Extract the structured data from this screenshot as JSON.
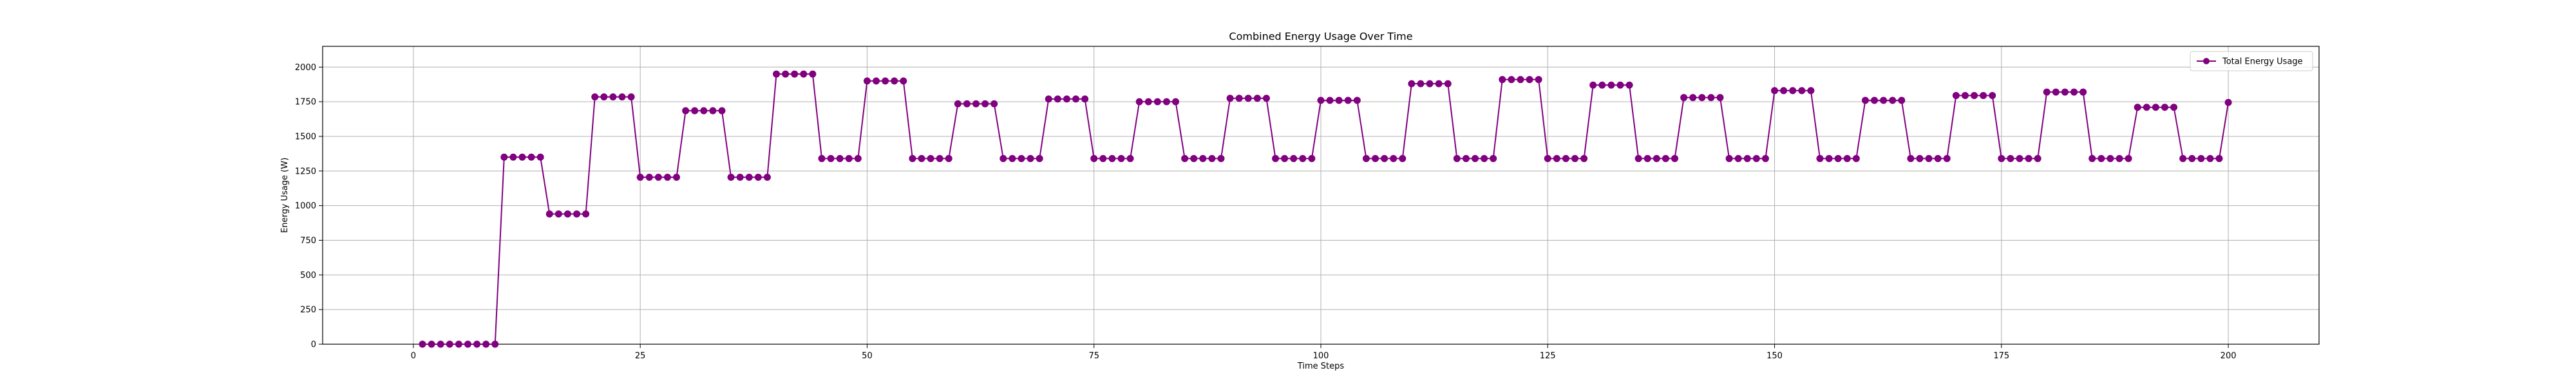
{
  "chart_data": {
    "type": "line",
    "title": "Combined Energy Usage Over Time",
    "xlabel": "Time Steps",
    "ylabel": "Energy Usage (W)",
    "xlim": [
      -10,
      210
    ],
    "ylim": [
      0,
      2150
    ],
    "xticks": [
      0,
      25,
      50,
      75,
      100,
      125,
      150,
      175,
      200
    ],
    "yticks": [
      0,
      250,
      500,
      750,
      1000,
      1250,
      1500,
      1750,
      2000
    ],
    "grid": true,
    "legend_position": "top-right",
    "series": [
      {
        "name": "Total Energy Usage",
        "color": "#800080",
        "marker": "circle",
        "x": [
          1,
          2,
          3,
          4,
          5,
          6,
          7,
          8,
          9,
          10,
          11,
          12,
          13,
          14,
          15,
          16,
          17,
          18,
          19,
          20,
          21,
          22,
          23,
          24,
          25,
          26,
          27,
          28,
          29,
          30,
          31,
          32,
          33,
          34,
          35,
          36,
          37,
          38,
          39,
          40,
          41,
          42,
          43,
          44,
          45,
          46,
          47,
          48,
          49,
          50,
          51,
          52,
          53,
          54,
          55,
          56,
          57,
          58,
          59,
          60,
          61,
          62,
          63,
          64,
          65,
          66,
          67,
          68,
          69,
          70,
          71,
          72,
          73,
          74,
          75,
          76,
          77,
          78,
          79,
          80,
          81,
          82,
          83,
          84,
          85,
          86,
          87,
          88,
          89,
          90,
          91,
          92,
          93,
          94,
          95,
          96,
          97,
          98,
          99,
          100,
          101,
          102,
          103,
          104,
          105,
          106,
          107,
          108,
          109,
          110,
          111,
          112,
          113,
          114,
          115,
          116,
          117,
          118,
          119,
          120,
          121,
          122,
          123,
          124,
          125,
          126,
          127,
          128,
          129,
          130,
          131,
          132,
          133,
          134,
          135,
          136,
          137,
          138,
          139,
          140,
          141,
          142,
          143,
          144,
          145,
          146,
          147,
          148,
          149,
          150,
          151,
          152,
          153,
          154,
          155,
          156,
          157,
          158,
          159,
          160,
          161,
          162,
          163,
          164,
          165,
          166,
          167,
          168,
          169,
          170,
          171,
          172,
          173,
          174,
          175,
          176,
          177,
          178,
          179,
          180,
          181,
          182,
          183,
          184,
          185,
          186,
          187,
          188,
          189,
          190,
          191,
          192,
          193,
          194,
          195,
          196,
          197,
          198,
          199,
          200
        ],
        "y": [
          0,
          0,
          0,
          0,
          0,
          0,
          0,
          0,
          0,
          1350,
          1350,
          1350,
          1350,
          1350,
          940,
          940,
          940,
          940,
          940,
          1785,
          1785,
          1785,
          1785,
          1785,
          1205,
          1205,
          1205,
          1205,
          1205,
          1685,
          1685,
          1685,
          1685,
          1685,
          1205,
          1205,
          1205,
          1205,
          1205,
          1950,
          1950,
          1950,
          1950,
          1950,
          1340,
          1340,
          1340,
          1340,
          1340,
          1900,
          1900,
          1900,
          1900,
          1900,
          1340,
          1340,
          1340,
          1340,
          1340,
          1735,
          1735,
          1735,
          1735,
          1735,
          1340,
          1340,
          1340,
          1340,
          1340,
          1770,
          1770,
          1770,
          1770,
          1770,
          1340,
          1340,
          1340,
          1340,
          1340,
          1750,
          1750,
          1750,
          1750,
          1750,
          1340,
          1340,
          1340,
          1340,
          1340,
          1775,
          1775,
          1775,
          1775,
          1775,
          1340,
          1340,
          1340,
          1340,
          1340,
          1760,
          1760,
          1760,
          1760,
          1760,
          1340,
          1340,
          1340,
          1340,
          1340,
          1880,
          1880,
          1880,
          1880,
          1880,
          1340,
          1340,
          1340,
          1340,
          1340,
          1910,
          1910,
          1910,
          1910,
          1910,
          1340,
          1340,
          1340,
          1340,
          1340,
          1870,
          1870,
          1870,
          1870,
          1870,
          1340,
          1340,
          1340,
          1340,
          1340,
          1780,
          1780,
          1780,
          1780,
          1780,
          1340,
          1340,
          1340,
          1340,
          1340,
          1830,
          1830,
          1830,
          1830,
          1830,
          1340,
          1340,
          1340,
          1340,
          1340,
          1760,
          1760,
          1760,
          1760,
          1760,
          1340,
          1340,
          1340,
          1340,
          1340,
          1795,
          1795,
          1795,
          1795,
          1795,
          1340,
          1340,
          1340,
          1340,
          1340,
          1820,
          1820,
          1820,
          1820,
          1820,
          1340,
          1340,
          1340,
          1340,
          1340,
          1710,
          1710,
          1710,
          1710,
          1710,
          1340,
          1340,
          1340,
          1340,
          1340,
          1745
        ]
      }
    ]
  }
}
